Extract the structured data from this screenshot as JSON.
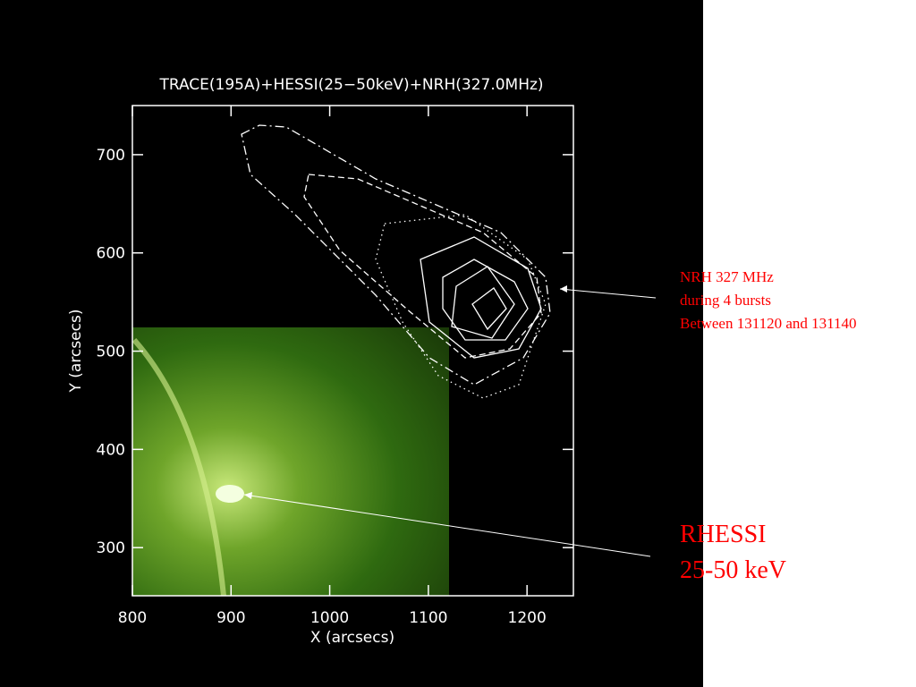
{
  "chart_data": {
    "type": "image",
    "title": "TRACE(195A)+HESSI(25−50keV)+NRH(327.0MHz)",
    "x_label": "X (arcsecs)",
    "y_label": "Y (arcsecs)",
    "xlim": [
      800,
      1247
    ],
    "ylim": [
      251,
      750
    ],
    "xticks": [
      800,
      900,
      1000,
      1100,
      1200
    ],
    "yticks": [
      300,
      400,
      500,
      600,
      700
    ],
    "annotations": [
      {
        "lines": [
          "NRH 327 MHz",
          "during 4 bursts",
          "Between 131120 and 131140"
        ],
        "color": "#ff0000"
      },
      {
        "lines": [
          "RHESSI",
          "25-50 keV"
        ],
        "color": "#ff0000"
      }
    ]
  }
}
